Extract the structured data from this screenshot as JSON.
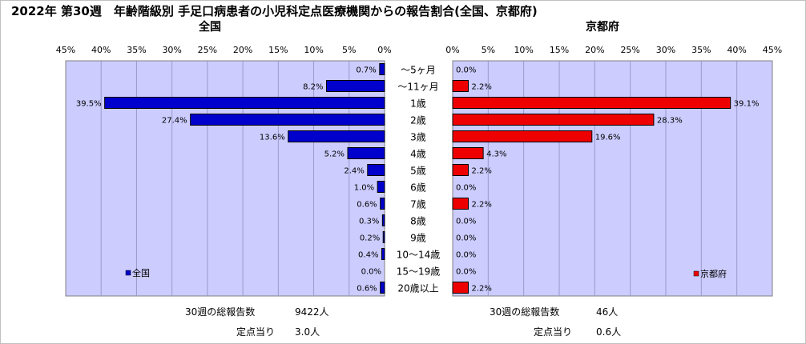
{
  "header": {
    "title": "2022年 第30週　年齢階級別 手足口病患者の小児科定点医療機関からの報告割合(全国、京都府)"
  },
  "chart_data": {
    "type": "bar",
    "categories": [
      "～5ヶ月",
      "～11ヶ月",
      "1歳",
      "2歳",
      "3歳",
      "4歳",
      "5歳",
      "6歳",
      "7歳",
      "8歳",
      "9歳",
      "10～14歳",
      "15～19歳",
      "20歳以上"
    ],
    "axis_ticks": [
      "0%",
      "5%",
      "10%",
      "15%",
      "20%",
      "25%",
      "30%",
      "35%",
      "40%",
      "45%"
    ],
    "xlim": [
      0,
      45
    ],
    "series": [
      {
        "name": "全国",
        "panel_title": "全国",
        "legend_label": "全国",
        "color": "#0000cc",
        "values": [
          0.7,
          8.2,
          39.5,
          27.4,
          13.6,
          5.2,
          2.4,
          1.0,
          0.6,
          0.3,
          0.2,
          0.4,
          0.0,
          0.6
        ],
        "value_labels": [
          "0.7%",
          "8.2%",
          "39.5%",
          "27.4%",
          "13.6%",
          "5.2%",
          "2.4%",
          "1.0%",
          "0.6%",
          "0.3%",
          "0.2%",
          "0.4%",
          "0.0%",
          "0.6%"
        ]
      },
      {
        "name": "京都府",
        "panel_title": "京都府",
        "legend_label": "京都府",
        "color": "#ee0000",
        "values": [
          0.0,
          2.2,
          39.1,
          28.3,
          19.6,
          4.3,
          2.2,
          0.0,
          2.2,
          0.0,
          0.0,
          0.0,
          0.0,
          2.2
        ],
        "value_labels": [
          "0.0%",
          "2.2%",
          "39.1%",
          "28.3%",
          "19.6%",
          "4.3%",
          "2.2%",
          "0.0%",
          "2.2%",
          "0.0%",
          "0.0%",
          "0.0%",
          "0.0%",
          "2.2%"
        ]
      }
    ],
    "plot_background": "#ccccff",
    "grid": true
  },
  "summary": {
    "left": {
      "total_label": "30週の総報告数",
      "total_value": "9422人",
      "per_label": "定点当り",
      "per_value": "3.0人"
    },
    "right": {
      "total_label": "30週の総報告数",
      "total_value": "46人",
      "per_label": "定点当り",
      "per_value": "0.6人"
    }
  }
}
